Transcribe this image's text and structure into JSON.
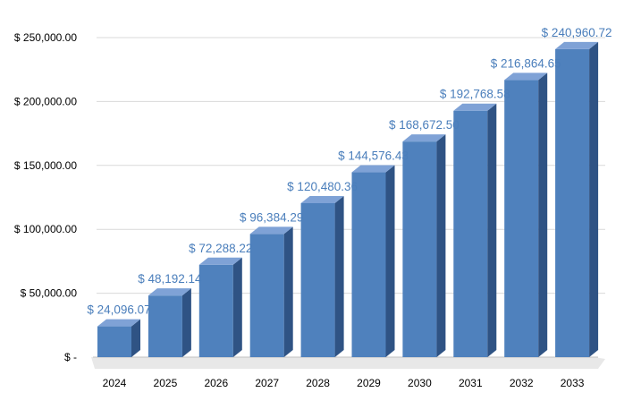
{
  "chart_data": {
    "type": "bar",
    "style": "3d-clustered-column",
    "categories": [
      "2024",
      "2025",
      "2026",
      "2027",
      "2028",
      "2029",
      "2030",
      "2031",
      "2032",
      "2033"
    ],
    "series": [
      {
        "values": [
          24096.07,
          48192.14,
          72288.22,
          96384.29,
          120480.36,
          144576.43,
          168672.5,
          192768.58,
          216864.65,
          240960.72
        ]
      }
    ],
    "data_labels": [
      "$ 24,096.07",
      "$ 48,192.14",
      "$ 72,288.22",
      "$ 96,384.29",
      "$ 120,480.36",
      "$ 144,576.43",
      "$ 168,672.50",
      "$ 192,768.58",
      "$ 216,864.65",
      "$ 240,960.72"
    ],
    "yticks": [
      0,
      50000,
      100000,
      150000,
      200000,
      250000
    ],
    "ytick_labels": [
      "$ -",
      "$ 50,000.00",
      "$ 100,000.00",
      "$ 150,000.00",
      "$ 200,000.00",
      "$ 250,000.00"
    ],
    "ylim": [
      0,
      250000
    ],
    "grid": true,
    "legend": "none",
    "colors": {
      "bar_front": "#4F81BD",
      "bar_top": "#7FA2D6",
      "bar_side": "#2F5384",
      "label": "#4A7EBB",
      "grid": "#D9D9D9",
      "floor": "#E8E8E8"
    }
  }
}
